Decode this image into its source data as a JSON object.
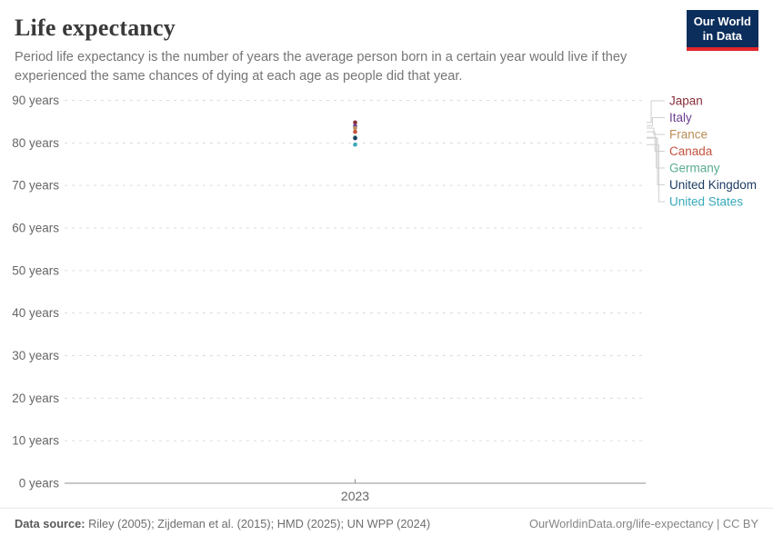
{
  "header": {
    "title": "Life expectancy",
    "subtitle": "Period life expectancy is the number of years the average person born in a certain year would live if they experienced the same chances of dying at each age as people did that year.",
    "logo": {
      "line1": "Our World",
      "line2": "in Data",
      "bg_color": "#0c2e5c",
      "accent_color": "#e2262b"
    }
  },
  "chart_data": {
    "type": "scatter",
    "title": "Life expectancy",
    "x_tick_labels": [
      "2023"
    ],
    "year": 2023,
    "yticks": [
      0,
      10,
      20,
      30,
      40,
      50,
      60,
      70,
      80,
      90
    ],
    "ytick_suffix": "years",
    "ylim": [
      0,
      90
    ],
    "grid": "horizontal-dashed",
    "legend_position": "right",
    "series": [
      {
        "name": "Japan",
        "color": "#883039",
        "year": 2023,
        "value": 84.8
      },
      {
        "name": "Italy",
        "color": "#6D3E91",
        "year": 2023,
        "value": 84.0
      },
      {
        "name": "France",
        "color": "#BC8E5A",
        "year": 2023,
        "value": 83.5
      },
      {
        "name": "Canada",
        "color": "#C4523E",
        "year": 2023,
        "value": 82.6
      },
      {
        "name": "Germany",
        "color": "#58AC8C",
        "year": 2023,
        "value": 81.3
      },
      {
        "name": "United Kingdom",
        "color": "#1D3D63",
        "year": 2023,
        "value": 81.1
      },
      {
        "name": "United States",
        "color": "#38AABA",
        "year": 2023,
        "value": 79.6
      }
    ],
    "style": {
      "gridline_color": "#dcdcdc",
      "axis_color": "#8f8f8f",
      "tick_label_color": "#666666",
      "connector_color": "#cfcfcf"
    }
  },
  "footer": {
    "source_label": "Data source:",
    "source_text": " Riley (2005); Zijdeman et al. (2015); HMD (2025); UN WPP (2024)",
    "link_text": "OurWorldinData.org/life-expectancy | CC BY"
  }
}
